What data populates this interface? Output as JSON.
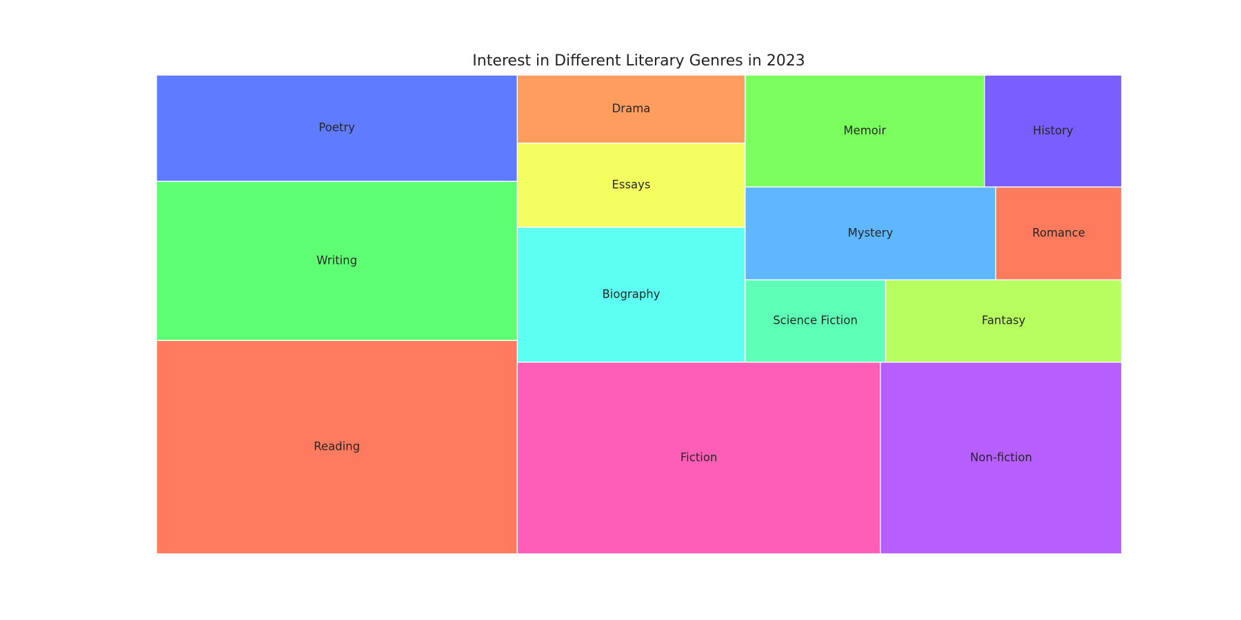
{
  "chart_data": {
    "type": "treemap",
    "title": "Interest in Different Literary Genres in 2023",
    "items": [
      {
        "label": "Reading",
        "value": 5.66,
        "color": "#FF7B60"
      },
      {
        "label": "Writing",
        "value": 4.22,
        "color": "#5EFF73"
      },
      {
        "label": "Poetry",
        "value": 2.82,
        "color": "#5F7BFF"
      },
      {
        "label": "Fiction",
        "value": 5.12,
        "color": "#FF5EB7"
      },
      {
        "label": "Non-fiction",
        "value": 3.4,
        "color": "#B75EFF"
      },
      {
        "label": "Biography",
        "value": 2.26,
        "color": "#5CFFF1"
      },
      {
        "label": "Essays",
        "value": 1.41,
        "color": "#F2FF5E"
      },
      {
        "label": "Drama",
        "value": 1.14,
        "color": "#FF9D5E"
      },
      {
        "label": "Memoir",
        "value": 1.97,
        "color": "#7BFF5E"
      },
      {
        "label": "History",
        "value": 1.13,
        "color": "#7B5EFF"
      },
      {
        "label": "Mystery",
        "value": 1.71,
        "color": "#5EB7FF"
      },
      {
        "label": "Romance",
        "value": 0.86,
        "color": "#FF7B5E"
      },
      {
        "label": "Science Fiction",
        "value": 0.85,
        "color": "#5EFFB7"
      },
      {
        "label": "Fantasy",
        "value": 1.43,
        "color": "#B7FF5E"
      }
    ]
  }
}
